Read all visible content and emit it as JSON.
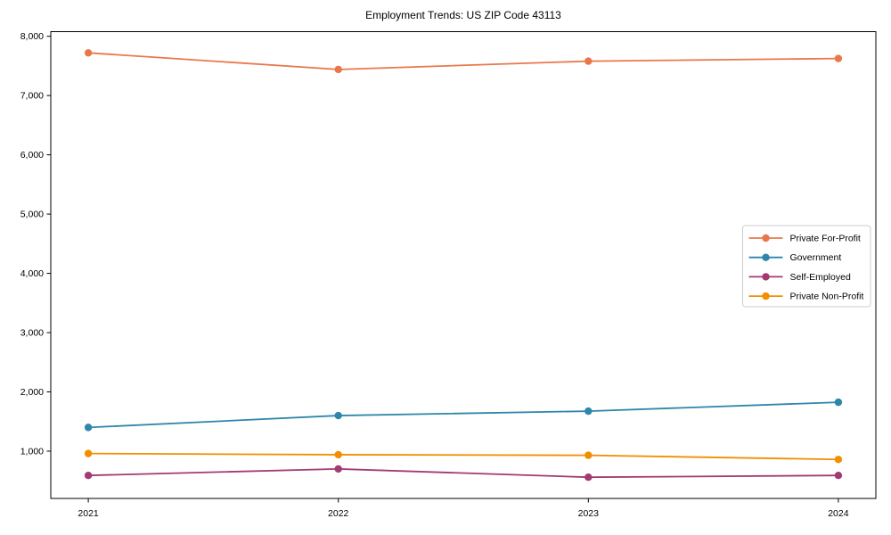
{
  "chart_data": {
    "type": "line",
    "title": "Employment Trends: US ZIP Code 43113",
    "xlabel": "",
    "ylabel": "",
    "categories": [
      "2021",
      "2022",
      "2023",
      "2024"
    ],
    "x": [
      2021,
      2022,
      2023,
      2024
    ],
    "series": [
      {
        "name": "Private For-Profit",
        "color": "#E8784C",
        "values": [
          7720,
          7440,
          7580,
          7625
        ]
      },
      {
        "name": "Government",
        "color": "#2E86AB",
        "values": [
          1400,
          1600,
          1675,
          1825
        ]
      },
      {
        "name": "Self-Employed",
        "color": "#A23B72",
        "values": [
          590,
          700,
          560,
          590
        ]
      },
      {
        "name": "Private Non-Profit",
        "color": "#F18F01",
        "values": [
          960,
          940,
          930,
          860
        ]
      }
    ],
    "y_ticks": [
      1000,
      2000,
      3000,
      4000,
      5000,
      6000,
      7000,
      8000
    ],
    "y_tick_labels": [
      "1,000",
      "2,000",
      "3,000",
      "4,000",
      "5,000",
      "6,000",
      "7,000",
      "8,000"
    ],
    "xlim": [
      2020.85,
      2024.15
    ],
    "ylim": [
      202,
      8078
    ],
    "grid": false,
    "legend_position": "center right",
    "marker": "circle"
  }
}
